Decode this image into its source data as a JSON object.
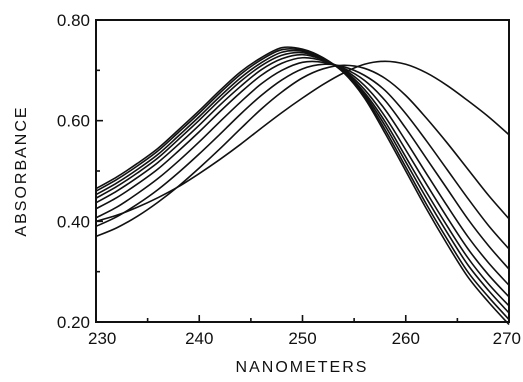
{
  "chart_data": {
    "type": "line",
    "title": "",
    "xlabel": "NANOMETERS",
    "ylabel": "ABSORBANCE",
    "xlim": [
      230,
      270
    ],
    "ylim": [
      0.2,
      0.8
    ],
    "x_ticks": [
      230,
      240,
      250,
      260,
      270
    ],
    "x_tick_labels": [
      "230",
      "240",
      "250",
      "260",
      "270"
    ],
    "y_ticks": [
      0.2,
      0.4,
      0.6,
      0.8
    ],
    "y_tick_labels": [
      "0.20",
      "0.40",
      "0.60",
      "0.80"
    ],
    "grid": false,
    "legend": "none",
    "line_color": "#111111",
    "x": [
      230,
      232,
      234,
      236,
      238,
      240,
      242,
      244,
      246,
      248,
      250,
      252,
      254,
      256,
      258,
      260,
      262,
      264,
      266,
      268,
      270
    ],
    "series": [
      {
        "values": [
          0.465,
          0.488,
          0.515,
          0.545,
          0.582,
          0.62,
          0.66,
          0.697,
          0.725,
          0.745,
          0.742,
          0.725,
          0.695,
          0.645,
          0.575,
          0.5,
          0.425,
          0.355,
          0.29,
          0.24,
          0.195
        ]
      },
      {
        "values": [
          0.46,
          0.483,
          0.51,
          0.54,
          0.577,
          0.615,
          0.655,
          0.692,
          0.721,
          0.741,
          0.74,
          0.724,
          0.696,
          0.648,
          0.582,
          0.508,
          0.434,
          0.365,
          0.3,
          0.25,
          0.205
        ]
      },
      {
        "values": [
          0.453,
          0.476,
          0.503,
          0.533,
          0.57,
          0.608,
          0.648,
          0.685,
          0.715,
          0.736,
          0.738,
          0.723,
          0.697,
          0.652,
          0.59,
          0.518,
          0.446,
          0.378,
          0.314,
          0.263,
          0.218
        ]
      },
      {
        "values": [
          0.446,
          0.469,
          0.496,
          0.526,
          0.563,
          0.601,
          0.641,
          0.678,
          0.709,
          0.73,
          0.735,
          0.722,
          0.698,
          0.656,
          0.598,
          0.528,
          0.458,
          0.391,
          0.328,
          0.276,
          0.232
        ]
      },
      {
        "values": [
          0.437,
          0.46,
          0.487,
          0.517,
          0.553,
          0.591,
          0.631,
          0.668,
          0.701,
          0.723,
          0.731,
          0.721,
          0.7,
          0.662,
          0.608,
          0.542,
          0.474,
          0.408,
          0.346,
          0.294,
          0.25
        ]
      },
      {
        "values": [
          0.425,
          0.447,
          0.474,
          0.504,
          0.54,
          0.578,
          0.618,
          0.656,
          0.69,
          0.714,
          0.725,
          0.719,
          0.702,
          0.67,
          0.622,
          0.56,
          0.495,
          0.431,
          0.37,
          0.318,
          0.273
        ]
      },
      {
        "values": [
          0.407,
          0.428,
          0.455,
          0.485,
          0.52,
          0.558,
          0.598,
          0.637,
          0.673,
          0.7,
          0.716,
          0.716,
          0.704,
          0.68,
          0.64,
          0.585,
          0.525,
          0.465,
          0.405,
          0.352,
          0.305
        ]
      },
      {
        "values": [
          0.39,
          0.409,
          0.434,
          0.463,
          0.497,
          0.534,
          0.573,
          0.613,
          0.65,
          0.681,
          0.703,
          0.712,
          0.707,
          0.69,
          0.66,
          0.614,
          0.56,
          0.503,
          0.446,
          0.392,
          0.345
        ]
      },
      {
        "values": [
          0.37,
          0.387,
          0.41,
          0.438,
          0.47,
          0.506,
          0.544,
          0.584,
          0.623,
          0.657,
          0.685,
          0.703,
          0.71,
          0.704,
          0.684,
          0.65,
          0.605,
          0.556,
          0.504,
          0.452,
          0.405
        ]
      },
      {
        "values": [
          0.4,
          0.412,
          0.428,
          0.447,
          0.469,
          0.495,
          0.523,
          0.553,
          0.585,
          0.616,
          0.645,
          0.672,
          0.695,
          0.712,
          0.718,
          0.712,
          0.695,
          0.67,
          0.64,
          0.608,
          0.572
        ]
      }
    ]
  }
}
